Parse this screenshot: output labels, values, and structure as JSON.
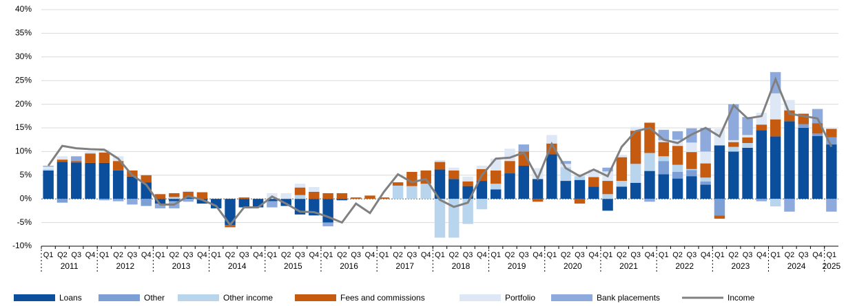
{
  "chart_data": {
    "type": "bar",
    "categories": [
      "Q1",
      "Q2",
      "Q3",
      "Q4",
      "Q1",
      "Q2",
      "Q3",
      "Q4",
      "Q1",
      "Q2",
      "Q3",
      "Q4",
      "Q1",
      "Q2",
      "Q3",
      "Q4",
      "Q1",
      "Q2",
      "Q3",
      "Q4",
      "Q1",
      "Q2",
      "Q3",
      "Q4",
      "Q1",
      "Q2",
      "Q3",
      "Q4",
      "Q1",
      "Q2",
      "Q3",
      "Q4",
      "Q1",
      "Q2",
      "Q3",
      "Q4",
      "Q1",
      "Q2",
      "Q3",
      "Q4",
      "Q1",
      "Q2",
      "Q3",
      "Q4",
      "Q1",
      "Q2",
      "Q3",
      "Q4",
      "Q1",
      "Q2",
      "Q3",
      "Q4",
      "Q1",
      "Q2",
      "Q3",
      "Q4",
      "Q1"
    ],
    "years": [
      "2011",
      "2012",
      "2013",
      "2014",
      "2015",
      "2016",
      "2017",
      "2018",
      "2019",
      "2020",
      "2021",
      "2022",
      "2023",
      "2024",
      "2025"
    ],
    "series": [
      {
        "name": "Loans",
        "color": "#0b4f9c",
        "values": [
          6,
          7.8,
          7.7,
          7.6,
          7.6,
          6,
          4.7,
          3.5,
          -1,
          -0.5,
          0.3,
          -1,
          -2,
          -5.5,
          -1.8,
          -1.8,
          -0.5,
          -1.5,
          -3.3,
          -3.5,
          -5,
          -0.3,
          0,
          0,
          0,
          0,
          0,
          0,
          6.2,
          4.2,
          2.7,
          3.8,
          2,
          5.4,
          7,
          4.2,
          9.4,
          3.8,
          4,
          2.6,
          -2.5,
          2.6,
          3.4,
          5.9,
          5.2,
          4.3,
          4.8,
          3,
          11.3,
          10,
          10.8,
          14.5,
          13.2,
          16.4,
          15,
          13.3,
          11.5
        ]
      },
      {
        "name": "Other",
        "color": "#7c9fd6",
        "values": [
          0,
          -0.8,
          0,
          0,
          0,
          0,
          0,
          -1.5,
          0,
          0,
          0,
          0,
          0,
          0,
          0,
          0,
          0,
          0,
          0,
          0,
          0,
          0,
          0,
          0,
          0,
          0,
          0,
          0,
          0,
          0,
          0,
          0,
          0,
          0,
          0,
          0,
          0,
          0,
          0,
          0,
          0,
          0,
          0,
          0,
          2.8,
          1.4,
          1.3,
          0.7,
          -3.5,
          0,
          0,
          0,
          0,
          0,
          0.8,
          0.5,
          1.5
        ]
      },
      {
        "name": "Other income",
        "color": "#b9d5ee",
        "values": [
          0.3,
          0,
          0,
          0,
          0,
          0,
          0,
          0,
          0,
          0.4,
          0,
          0,
          0,
          0,
          0,
          0,
          0,
          0,
          0.8,
          0,
          0,
          0,
          0,
          0,
          0,
          2.8,
          2.7,
          3.2,
          -8.2,
          -8.2,
          -5.3,
          -2.2,
          1.2,
          0,
          0,
          0,
          0,
          2.9,
          0.8,
          0,
          1,
          1.2,
          4,
          3.8,
          1,
          1.5,
          0.2,
          0.8,
          0,
          1,
          1,
          0,
          -1.6,
          0,
          0,
          0,
          0
        ]
      },
      {
        "name": "Fees and commissions",
        "color": "#c55a11",
        "values": [
          0,
          0.5,
          0.3,
          2,
          2.2,
          2,
          1.3,
          1.5,
          1,
          0.8,
          1.2,
          1.4,
          0,
          -0.5,
          0.3,
          0,
          0,
          0,
          1.6,
          1.5,
          1.2,
          1.2,
          0.3,
          0.7,
          0.3,
          0.7,
          3,
          2.8,
          1.6,
          1.8,
          1,
          2.5,
          2.8,
          2.6,
          3,
          -0.6,
          2.3,
          0,
          -1,
          2,
          2.8,
          5,
          7,
          6.4,
          3,
          4,
          3.6,
          3,
          -0.7,
          1,
          1.2,
          1.2,
          3.6,
          2.3,
          2.2,
          2.2,
          1.8
        ]
      },
      {
        "name": "Portfolio",
        "color": "#dde7f5",
        "values": [
          0.5,
          0.7,
          0,
          0.3,
          0.6,
          1,
          0,
          0,
          0,
          0,
          0.2,
          0,
          0,
          0,
          0,
          0,
          1.2,
          1.2,
          0.8,
          1,
          0,
          0,
          0,
          0,
          0,
          0,
          0,
          0,
          0.4,
          0.6,
          1,
          0.7,
          2.5,
          2.6,
          0,
          2.3,
          1.8,
          0.7,
          0.5,
          1.6,
          2,
          0.5,
          0.8,
          0,
          0.4,
          1.3,
          2,
          2.5,
          3.5,
          0.4,
          0.5,
          2.5,
          5.5,
          2.2,
          0,
          0,
          0
        ]
      },
      {
        "name": "Bank placements",
        "color": "#8eaadd",
        "values": [
          0.2,
          0,
          1,
          0,
          -0.3,
          -0.5,
          -1.2,
          0,
          -1,
          -1.5,
          -0.6,
          0,
          0,
          0,
          0,
          0,
          -1.3,
          0,
          0,
          0,
          -0.8,
          0,
          0,
          0,
          0,
          0,
          0,
          0,
          0,
          0,
          0,
          0,
          0,
          0,
          1.5,
          0,
          0,
          0.6,
          0,
          0,
          0.8,
          0,
          0,
          -0.6,
          2.2,
          1.8,
          3,
          5,
          0,
          7.6,
          3.8,
          -0.5,
          4.5,
          -2.7,
          0,
          3,
          -2.7
        ]
      },
      {
        "name": "Income",
        "color": "#808080",
        "line": true,
        "values": [
          7,
          11.2,
          10.7,
          10.5,
          10.4,
          8.5,
          5,
          3,
          -1.2,
          -1.2,
          0.6,
          -0.2,
          -1.5,
          -5.5,
          -1.8,
          -1.8,
          0.5,
          -1,
          -2.7,
          -2.8,
          -3.8,
          -5,
          -1,
          -3,
          1.5,
          5.2,
          3.5,
          4.2,
          -0.2,
          -1.7,
          -0.8,
          5,
          8.5,
          8.7,
          9.8,
          4.3,
          11.6,
          6.5,
          4.8,
          6.2,
          4.8,
          11,
          14.3,
          15,
          12.5,
          11.8,
          13.6,
          15,
          13.2,
          19.8,
          17,
          17.5,
          25.3,
          18,
          17.5,
          17,
          11
        ]
      }
    ],
    "ylim": [
      -10,
      40
    ],
    "yticks": [
      {
        "value": -10,
        "label": "-10%"
      },
      {
        "value": -5,
        "label": "-5%"
      },
      {
        "value": 0,
        "label": "0%"
      },
      {
        "value": 5,
        "label": "5%"
      },
      {
        "value": 10,
        "label": "10%"
      },
      {
        "value": 15,
        "label": "15%"
      },
      {
        "value": 20,
        "label": "20%"
      },
      {
        "value": 25,
        "label": "25%"
      },
      {
        "value": 30,
        "label": "30%"
      },
      {
        "value": 35,
        "label": "35%"
      },
      {
        "value": 40,
        "label": "40%"
      }
    ],
    "grid": true,
    "legend": "bottom"
  }
}
